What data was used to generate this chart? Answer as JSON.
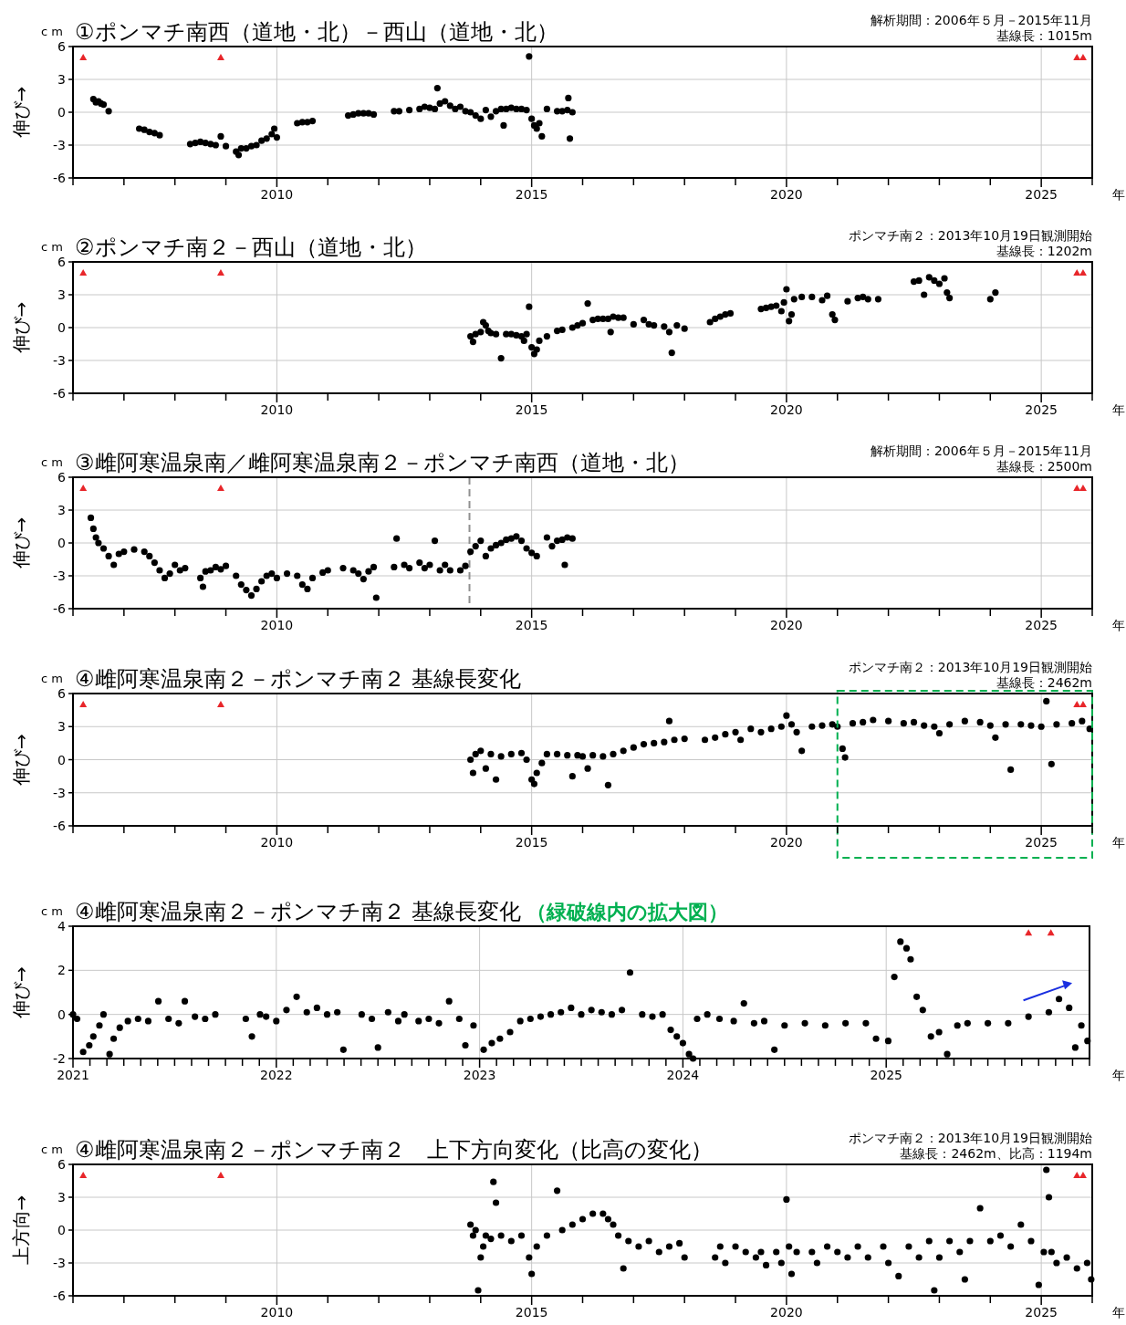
{
  "chart_data": [
    {
      "type": "scatter",
      "title": "①ポンマチ南西（道地・北）－西山（道地・北）",
      "subtitle": "解析期間：2006年５月－2015年11月",
      "annotations": [
        "cm",
        "基線長：1015m"
      ],
      "xlabel": "年",
      "ylabel": "伸び→",
      "marker": "circle",
      "grid": true,
      "xlim": [
        2006,
        2026
      ],
      "xticks": [
        {
          "value": 2006,
          "label": null
        },
        {
          "value": 2007,
          "label": null
        },
        {
          "value": 2008,
          "label": null
        },
        {
          "value": 2009,
          "label": null
        },
        2010,
        {
          "value": 2011,
          "label": null
        },
        {
          "value": 2012,
          "label": null
        },
        {
          "value": 2013,
          "label": null
        },
        {
          "value": 2014,
          "label": null
        },
        2015,
        {
          "value": 2016,
          "label": null
        },
        {
          "value": 2017,
          "label": null
        },
        {
          "value": 2018,
          "label": null
        },
        {
          "value": 2019,
          "label": null
        },
        2020,
        {
          "value": 2021,
          "label": null
        },
        {
          "value": 2022,
          "label": null
        },
        {
          "value": 2023,
          "label": null
        },
        {
          "value": 2024,
          "label": null
        },
        2025,
        {
          "value": 2026,
          "label": null
        }
      ],
      "ylim": [
        -6,
        6
      ],
      "yticks": [
        -6,
        -3,
        0,
        3,
        6
      ],
      "series": [
        {
          "color": "#000000",
          "x": [
            2006.4,
            2006.45,
            2006.5,
            2006.55,
            2006.6,
            2006.7,
            2007.3,
            2007.4,
            2007.5,
            2007.6,
            2007.7,
            2008.3,
            2008.4,
            2008.5,
            2008.6,
            2008.7,
            2008.8,
            2008.9,
            2009.0,
            2009.2,
            2009.25,
            2009.3,
            2009.4,
            2009.5,
            2009.6,
            2009.7,
            2009.8,
            2009.9,
            2009.95,
            2010.0,
            2010.4,
            2010.5,
            2010.6,
            2010.7,
            2011.4,
            2011.5,
            2011.6,
            2011.7,
            2011.8,
            2011.9,
            2012.3,
            2012.4,
            2012.6,
            2012.8,
            2012.9,
            2013.0,
            2013.1,
            2013.15,
            2013.2,
            2013.3,
            2013.4,
            2013.5,
            2013.6,
            2013.7,
            2013.8,
            2013.9,
            2014.0,
            2014.1,
            2014.2,
            2014.3,
            2014.4,
            2014.45,
            2014.5,
            2014.6,
            2014.7,
            2014.8,
            2014.9,
            2014.95,
            2015.0,
            2015.05,
            2015.1,
            2015.15,
            2015.2,
            2015.3,
            2015.5,
            2015.6,
            2015.7,
            2015.72,
            2015.75,
            2015.8
          ],
          "values": [
            1.2,
            0.9,
            1.0,
            0.8,
            0.7,
            0.1,
            -1.5,
            -1.6,
            -1.8,
            -1.9,
            -2.1,
            -2.9,
            -2.8,
            -2.7,
            -2.8,
            -2.9,
            -3.0,
            -2.2,
            -3.1,
            -3.6,
            -3.9,
            -3.3,
            -3.3,
            -3.1,
            -3.0,
            -2.6,
            -2.4,
            -2.0,
            -1.5,
            -2.3,
            -1.0,
            -0.9,
            -0.9,
            -0.8,
            -0.3,
            -0.2,
            -0.1,
            -0.1,
            -0.1,
            -0.2,
            0.1,
            0.1,
            0.2,
            0.3,
            0.5,
            0.4,
            0.3,
            2.2,
            0.8,
            1.0,
            0.6,
            0.3,
            0.5,
            0.1,
            0.0,
            -0.3,
            -0.6,
            0.2,
            -0.4,
            0.1,
            0.3,
            -1.2,
            0.3,
            0.4,
            0.3,
            0.3,
            0.2,
            5.1,
            -0.6,
            -1.2,
            -1.5,
            -1.0,
            -2.2,
            0.3,
            0.1,
            0.1,
            0.2,
            1.3,
            -2.4,
            0.0
          ]
        },
        {
          "color": "#e8262a",
          "marker": "triangle",
          "x": [
            2006.2,
            2008.9,
            2025.7,
            2025.82
          ],
          "values": [
            5,
            5,
            5,
            5
          ]
        }
      ]
    },
    {
      "type": "scatter",
      "title": "②ポンマチ南２－西山（道地・北）",
      "subtitle": "ポンマチ南２：2013年10月19日観測開始",
      "annotations": [
        "cm",
        "基線長：1202m"
      ],
      "xlabel": "年",
      "ylabel": "伸び→",
      "marker": "circle",
      "grid": true,
      "xlim": [
        2006,
        2026
      ],
      "xticks": [
        {
          "value": 2006,
          "label": null
        },
        {
          "value": 2007,
          "label": null
        },
        {
          "value": 2008,
          "label": null
        },
        {
          "value": 2009,
          "label": null
        },
        2010,
        {
          "value": 2011,
          "label": null
        },
        {
          "value": 2012,
          "label": null
        },
        {
          "value": 2013,
          "label": null
        },
        {
          "value": 2014,
          "label": null
        },
        2015,
        {
          "value": 2016,
          "label": null
        },
        {
          "value": 2017,
          "label": null
        },
        {
          "value": 2018,
          "label": null
        },
        {
          "value": 2019,
          "label": null
        },
        2020,
        {
          "value": 2021,
          "label": null
        },
        {
          "value": 2022,
          "label": null
        },
        {
          "value": 2023,
          "label": null
        },
        {
          "value": 2024,
          "label": null
        },
        2025,
        {
          "value": 2026,
          "label": null
        }
      ],
      "ylim": [
        -6,
        6
      ],
      "yticks": [
        -6,
        -3,
        0,
        3,
        6
      ],
      "series": [
        {
          "color": "#000000",
          "x": [
            2013.8,
            2013.85,
            2013.9,
            2014.0,
            2014.05,
            2014.1,
            2014.15,
            2014.2,
            2014.3,
            2014.4,
            2014.5,
            2014.6,
            2014.7,
            2014.8,
            2014.85,
            2014.9,
            2014.95,
            2015.0,
            2015.05,
            2015.1,
            2015.15,
            2015.3,
            2015.5,
            2015.6,
            2015.8,
            2015.9,
            2016.0,
            2016.1,
            2016.2,
            2016.3,
            2016.4,
            2016.5,
            2016.55,
            2016.6,
            2016.7,
            2016.8,
            2017.0,
            2017.2,
            2017.3,
            2017.4,
            2017.6,
            2017.7,
            2017.75,
            2017.85,
            2018.0,
            2018.5,
            2018.6,
            2018.7,
            2018.8,
            2018.9,
            2019.5,
            2019.6,
            2019.7,
            2019.8,
            2019.9,
            2019.95,
            2020.0,
            2020.05,
            2020.1,
            2020.15,
            2020.3,
            2020.5,
            2020.7,
            2020.8,
            2020.9,
            2020.95,
            2021.2,
            2021.4,
            2021.5,
            2021.6,
            2021.8,
            2022.5,
            2022.6,
            2022.7,
            2022.8,
            2022.9,
            2023.0,
            2023.1,
            2023.15,
            2023.2,
            2024.0,
            2024.1
          ],
          "values": [
            -0.8,
            -1.3,
            -0.6,
            -0.4,
            0.5,
            0.2,
            -0.3,
            -0.5,
            -0.6,
            -2.8,
            -0.6,
            -0.6,
            -0.7,
            -0.8,
            -1.2,
            -0.6,
            1.9,
            -1.8,
            -2.4,
            -2.0,
            -1.2,
            -0.8,
            -0.3,
            -0.2,
            0.0,
            0.2,
            0.4,
            2.2,
            0.7,
            0.8,
            0.8,
            0.8,
            -0.4,
            1.0,
            0.9,
            0.9,
            0.3,
            0.7,
            0.3,
            0.2,
            0.1,
            -0.4,
            -2.3,
            0.2,
            -0.1,
            0.5,
            0.8,
            1.0,
            1.2,
            1.3,
            1.7,
            1.8,
            1.9,
            2.0,
            1.5,
            2.3,
            3.5,
            0.6,
            1.2,
            2.6,
            2.8,
            2.8,
            2.5,
            2.9,
            1.2,
            0.7,
            2.4,
            2.7,
            2.8,
            2.6,
            2.6,
            4.2,
            4.3,
            3.0,
            4.6,
            4.3,
            4.0,
            4.5,
            3.2,
            2.7,
            2.6,
            3.2
          ]
        },
        {
          "color": "#e8262a",
          "marker": "triangle",
          "x": [
            2006.2,
            2008.9,
            2025.7,
            2025.82
          ],
          "values": [
            5,
            5,
            5,
            5
          ]
        }
      ]
    },
    {
      "type": "scatter",
      "title": "③雌阿寒温泉南／雌阿寒温泉南２－ポンマチ南西（道地・北）",
      "subtitle": "解析期間：2006年５月－2015年11月",
      "annotations": [
        "cm",
        "基線長：2500m"
      ],
      "xlabel": "年",
      "ylabel": "伸び→",
      "marker": "circle",
      "grid": true,
      "xlim": [
        2006,
        2026
      ],
      "xticks": [
        {
          "value": 2006,
          "label": null
        },
        {
          "value": 2007,
          "label": null
        },
        {
          "value": 2008,
          "label": null
        },
        {
          "value": 2009,
          "label": null
        },
        2010,
        {
          "value": 2011,
          "label": null
        },
        {
          "value": 2012,
          "label": null
        },
        {
          "value": 2013,
          "label": null
        },
        {
          "value": 2014,
          "label": null
        },
        2015,
        {
          "value": 2016,
          "label": null
        },
        {
          "value": 2017,
          "label": null
        },
        {
          "value": 2018,
          "label": null
        },
        {
          "value": 2019,
          "label": null
        },
        2020,
        {
          "value": 2021,
          "label": null
        },
        {
          "value": 2022,
          "label": null
        },
        {
          "value": 2023,
          "label": null
        },
        {
          "value": 2024,
          "label": null
        },
        2025,
        {
          "value": 2026,
          "label": null
        }
      ],
      "ylim": [
        -6,
        6
      ],
      "yticks": [
        -6,
        -3,
        0,
        3,
        6
      ],
      "ref_lines": [
        {
          "axis": "x",
          "value": 2013.78,
          "color": "#909090",
          "line_style": "dashed"
        }
      ],
      "series": [
        {
          "color": "#000000",
          "x": [
            2006.35,
            2006.4,
            2006.45,
            2006.5,
            2006.6,
            2006.7,
            2006.8,
            2006.9,
            2007.0,
            2007.2,
            2007.4,
            2007.5,
            2007.6,
            2007.7,
            2007.8,
            2007.9,
            2008.0,
            2008.1,
            2008.2,
            2008.5,
            2008.55,
            2008.6,
            2008.7,
            2008.8,
            2008.9,
            2009.0,
            2009.2,
            2009.3,
            2009.4,
            2009.5,
            2009.6,
            2009.7,
            2009.8,
            2009.9,
            2010.0,
            2010.2,
            2010.4,
            2010.5,
            2010.6,
            2010.7,
            2010.9,
            2011.0,
            2011.3,
            2011.5,
            2011.6,
            2011.7,
            2011.8,
            2011.9,
            2011.95,
            2012.3,
            2012.35,
            2012.5,
            2012.6,
            2012.8,
            2012.9,
            2013.0,
            2013.1,
            2013.2,
            2013.3,
            2013.4,
            2013.6,
            2013.7,
            2013.8,
            2013.9,
            2014.0,
            2014.1,
            2014.2,
            2014.3,
            2014.4,
            2014.5,
            2014.6,
            2014.7,
            2014.8,
            2014.9,
            2015.0,
            2015.1,
            2015.3,
            2015.4,
            2015.5,
            2015.6,
            2015.65,
            2015.7,
            2015.8
          ],
          "values": [
            2.3,
            1.3,
            0.5,
            0.0,
            -0.5,
            -1.2,
            -2.0,
            -1.0,
            -0.8,
            -0.6,
            -0.8,
            -1.2,
            -1.8,
            -2.5,
            -3.2,
            -2.8,
            -2.0,
            -2.5,
            -2.3,
            -3.2,
            -4.0,
            -2.6,
            -2.5,
            -2.2,
            -2.4,
            -2.1,
            -3.0,
            -3.8,
            -4.3,
            -4.8,
            -4.2,
            -3.5,
            -3.0,
            -2.8,
            -3.2,
            -2.8,
            -3.0,
            -3.8,
            -4.2,
            -3.2,
            -2.7,
            -2.5,
            -2.3,
            -2.5,
            -2.8,
            -3.3,
            -2.6,
            -2.2,
            -5.0,
            -2.2,
            0.4,
            -2.0,
            -2.3,
            -1.8,
            -2.3,
            -2.0,
            0.2,
            -2.5,
            -2.0,
            -2.5,
            -2.5,
            -2.1,
            -0.8,
            -0.3,
            0.2,
            -1.2,
            -0.5,
            -0.2,
            0.0,
            0.3,
            0.4,
            0.6,
            0.2,
            -0.5,
            -0.9,
            -1.2,
            0.5,
            -0.3,
            0.2,
            0.3,
            -2.0,
            0.5,
            0.4
          ]
        },
        {
          "color": "#e8262a",
          "marker": "triangle",
          "x": [
            2006.2,
            2008.9,
            2025.7,
            2025.82
          ],
          "values": [
            5,
            5,
            5,
            5
          ]
        }
      ]
    },
    {
      "type": "scatter",
      "title": "④雌阿寒温泉南２－ポンマチ南２  基線長変化",
      "subtitle": "ポンマチ南２：2013年10月19日観測開始",
      "annotations": [
        "cm",
        "基線長：2462m"
      ],
      "xlabel": "年",
      "ylabel": "伸び→",
      "marker": "circle",
      "grid": true,
      "xlim": [
        2006,
        2026
      ],
      "xticks": [
        {
          "value": 2006,
          "label": null
        },
        {
          "value": 2007,
          "label": null
        },
        {
          "value": 2008,
          "label": null
        },
        {
          "value": 2009,
          "label": null
        },
        2010,
        {
          "value": 2011,
          "label": null
        },
        {
          "value": 2012,
          "label": null
        },
        {
          "value": 2013,
          "label": null
        },
        {
          "value": 2014,
          "label": null
        },
        2015,
        {
          "value": 2016,
          "label": null
        },
        {
          "value": 2017,
          "label": null
        },
        {
          "value": 2018,
          "label": null
        },
        {
          "value": 2019,
          "label": null
        },
        2020,
        {
          "value": 2021,
          "label": null
        },
        {
          "value": 2022,
          "label": null
        },
        {
          "value": 2023,
          "label": null
        },
        {
          "value": 2024,
          "label": null
        },
        2025,
        {
          "value": 2026,
          "label": null
        }
      ],
      "ylim": [
        -6,
        6
      ],
      "yticks": [
        -6,
        -3,
        0,
        3,
        6
      ],
      "series": [
        {
          "color": "#000000",
          "x": [
            2013.8,
            2013.85,
            2013.9,
            2014.0,
            2014.1,
            2014.2,
            2014.3,
            2014.4,
            2014.6,
            2014.8,
            2014.9,
            2015.0,
            2015.05,
            2015.1,
            2015.2,
            2015.3,
            2015.5,
            2015.7,
            2015.8,
            2015.9,
            2016.0,
            2016.1,
            2016.2,
            2016.4,
            2016.5,
            2016.6,
            2016.8,
            2017.0,
            2017.2,
            2017.4,
            2017.6,
            2017.7,
            2017.8,
            2018.0,
            2018.4,
            2018.6,
            2018.8,
            2019.0,
            2019.1,
            2019.3,
            2019.5,
            2019.7,
            2019.9,
            2020.0,
            2020.1,
            2020.2,
            2020.3,
            2020.5,
            2020.7,
            2020.9,
            2021.0,
            2021.1,
            2021.15,
            2021.3,
            2021.5,
            2021.7,
            2022.0,
            2022.3,
            2022.5,
            2022.7,
            2022.9,
            2023.0,
            2023.2,
            2023.5,
            2023.8,
            2024.0,
            2024.1,
            2024.3,
            2024.4,
            2024.6,
            2024.8,
            2025.0,
            2025.1,
            2025.2,
            2025.3,
            2025.6,
            2025.8,
            2025.95
          ],
          "values": [
            0.0,
            -1.2,
            0.5,
            0.8,
            -0.8,
            0.5,
            -1.8,
            0.3,
            0.5,
            0.6,
            0.0,
            -1.8,
            -2.2,
            -1.2,
            -0.3,
            0.5,
            0.5,
            0.4,
            -1.5,
            0.4,
            0.3,
            -0.8,
            0.4,
            0.3,
            -2.3,
            0.5,
            0.8,
            1.1,
            1.4,
            1.5,
            1.6,
            3.5,
            1.8,
            1.9,
            1.8,
            2.0,
            2.3,
            2.5,
            1.8,
            2.8,
            2.5,
            2.8,
            3.0,
            4.0,
            3.2,
            2.5,
            0.8,
            3.0,
            3.1,
            3.2,
            3.0,
            1.0,
            0.2,
            3.3,
            3.4,
            3.6,
            3.5,
            3.3,
            3.4,
            3.1,
            3.0,
            2.4,
            3.2,
            3.5,
            3.4,
            3.1,
            2.0,
            3.2,
            -0.9,
            3.2,
            3.1,
            3.0,
            5.3,
            -0.4,
            3.2,
            3.3,
            3.5,
            2.8
          ]
        },
        {
          "color": "#e8262a",
          "marker": "triangle",
          "x": [
            2006.2,
            2008.9,
            2025.7,
            2025.82
          ],
          "values": [
            5,
            5,
            5,
            5
          ]
        }
      ]
    },
    {
      "type": "scatter",
      "title": "④雌阿寒温泉南２－ポンマチ南２ 基線長変化",
      "subtitle": "（緑破線内の拡大図）",
      "annotations": [
        "cm"
      ],
      "xlabel": "年",
      "ylabel": "伸び→",
      "marker": "circle",
      "grid": true,
      "xlim": [
        2021,
        2026
      ],
      "xticks": [
        2021,
        {
          "value": 2021.0833,
          "label": null
        },
        {
          "value": 2021.1667,
          "label": null
        },
        {
          "value": 2021.25,
          "label": null
        },
        {
          "value": 2021.3333,
          "label": null
        },
        {
          "value": 2021.4167,
          "label": null
        },
        {
          "value": 2021.5,
          "label": null
        },
        {
          "value": 2021.5833,
          "label": null
        },
        {
          "value": 2021.6667,
          "label": null
        },
        {
          "value": 2021.75,
          "label": null
        },
        {
          "value": 2021.8333,
          "label": null
        },
        {
          "value": 2021.9167,
          "label": null
        },
        2022,
        {
          "value": 2022.0833,
          "label": null
        },
        {
          "value": 2022.1667,
          "label": null
        },
        {
          "value": 2022.25,
          "label": null
        },
        {
          "value": 2022.3333,
          "label": null
        },
        {
          "value": 2022.4167,
          "label": null
        },
        {
          "value": 2022.5,
          "label": null
        },
        {
          "value": 2022.5833,
          "label": null
        },
        {
          "value": 2022.6667,
          "label": null
        },
        {
          "value": 2022.75,
          "label": null
        },
        {
          "value": 2022.8333,
          "label": null
        },
        {
          "value": 2022.9167,
          "label": null
        },
        2023,
        {
          "value": 2023.0833,
          "label": null
        },
        {
          "value": 2023.1667,
          "label": null
        },
        {
          "value": 2023.25,
          "label": null
        },
        {
          "value": 2023.3333,
          "label": null
        },
        {
          "value": 2023.4167,
          "label": null
        },
        {
          "value": 2023.5,
          "label": null
        },
        {
          "value": 2023.5833,
          "label": null
        },
        {
          "value": 2023.6667,
          "label": null
        },
        {
          "value": 2023.75,
          "label": null
        },
        {
          "value": 2023.8333,
          "label": null
        },
        {
          "value": 2023.9167,
          "label": null
        },
        2024,
        {
          "value": 2024.0833,
          "label": null
        },
        {
          "value": 2024.1667,
          "label": null
        },
        {
          "value": 2024.25,
          "label": null
        },
        {
          "value": 2024.3333,
          "label": null
        },
        {
          "value": 2024.4167,
          "label": null
        },
        {
          "value": 2024.5,
          "label": null
        },
        {
          "value": 2024.5833,
          "label": null
        },
        {
          "value": 2024.6667,
          "label": null
        },
        {
          "value": 2024.75,
          "label": null
        },
        {
          "value": 2024.8333,
          "label": null
        },
        {
          "value": 2024.9167,
          "label": null
        },
        2025,
        {
          "value": 2025.0833,
          "label": null
        },
        {
          "value": 2025.1667,
          "label": null
        },
        {
          "value": 2025.25,
          "label": null
        },
        {
          "value": 2025.3333,
          "label": null
        },
        {
          "value": 2025.4167,
          "label": null
        },
        {
          "value": 2025.5,
          "label": null
        },
        {
          "value": 2025.5833,
          "label": null
        },
        {
          "value": 2025.6667,
          "label": null
        },
        {
          "value": 2025.75,
          "label": null
        },
        {
          "value": 2025.8333,
          "label": null
        },
        {
          "value": 2025.9167,
          "label": null
        },
        {
          "value": 2026,
          "label": null
        }
      ],
      "ylim": [
        -2,
        4
      ],
      "yticks": [
        -2,
        0,
        2,
        4
      ],
      "series": [
        {
          "color": "#000000",
          "x": [
            2021.0,
            2021.02,
            2021.05,
            2021.08,
            2021.1,
            2021.13,
            2021.15,
            2021.18,
            2021.2,
            2021.23,
            2021.27,
            2021.32,
            2021.37,
            2021.42,
            2021.47,
            2021.52,
            2021.55,
            2021.6,
            2021.65,
            2021.7,
            2021.85,
            2021.88,
            2021.92,
            2021.95,
            2022.0,
            2022.05,
            2022.1,
            2022.15,
            2022.2,
            2022.25,
            2022.3,
            2022.33,
            2022.42,
            2022.47,
            2022.5,
            2022.55,
            2022.6,
            2022.63,
            2022.7,
            2022.75,
            2022.8,
            2022.85,
            2022.9,
            2022.93,
            2022.97,
            2023.02,
            2023.06,
            2023.1,
            2023.15,
            2023.2,
            2023.25,
            2023.3,
            2023.35,
            2023.4,
            2023.45,
            2023.5,
            2023.55,
            2023.6,
            2023.65,
            2023.7,
            2023.74,
            2023.8,
            2023.85,
            2023.9,
            2023.94,
            2023.97,
            2024.0,
            2024.03,
            2024.05,
            2024.07,
            2024.12,
            2024.18,
            2024.25,
            2024.3,
            2024.35,
            2024.4,
            2024.45,
            2024.5,
            2024.6,
            2024.7,
            2024.8,
            2024.9,
            2024.95,
            2025.01,
            2025.04,
            2025.07,
            2025.1,
            2025.12,
            2025.15,
            2025.18,
            2025.22,
            2025.26,
            2025.3,
            2025.35,
            2025.4,
            2025.5,
            2025.6,
            2025.7,
            2025.8,
            2025.85,
            2025.9,
            2025.93,
            2025.96,
            2025.99
          ],
          "values": [
            0.0,
            -0.2,
            -1.7,
            -1.4,
            -1.0,
            -0.5,
            0.0,
            -1.8,
            -1.1,
            -0.6,
            -0.3,
            -0.2,
            -0.3,
            0.6,
            -0.2,
            -0.4,
            0.6,
            -0.1,
            -0.2,
            0.0,
            -0.2,
            -1.0,
            0.0,
            -0.1,
            -0.3,
            0.2,
            0.8,
            0.1,
            0.3,
            0.0,
            0.1,
            -1.6,
            0.0,
            -0.2,
            -1.5,
            0.1,
            -0.3,
            0.0,
            -0.3,
            -0.2,
            -0.4,
            0.6,
            -0.2,
            -1.4,
            -0.5,
            -1.6,
            -1.3,
            -1.1,
            -0.8,
            -0.3,
            -0.2,
            -0.1,
            0.0,
            0.1,
            0.3,
            0.0,
            0.2,
            0.1,
            0.0,
            0.2,
            1.9,
            0.0,
            -0.1,
            0.0,
            -0.7,
            -1.0,
            -1.3,
            -1.8,
            -2.0,
            -0.2,
            0.0,
            -0.2,
            -0.3,
            0.5,
            -0.4,
            -0.3,
            -1.6,
            -0.5,
            -0.4,
            -0.5,
            -0.4,
            -0.4,
            -1.1,
            -1.2,
            1.7,
            3.3,
            3.0,
            2.5,
            0.8,
            0.2,
            -1.0,
            -0.8,
            -1.8,
            -0.5,
            -0.4,
            -0.4,
            -0.4,
            -0.1,
            0.1,
            0.7,
            0.3,
            -1.5,
            -0.5,
            -1.2
          ]
        },
        {
          "color": "#e8262a",
          "marker": "triangle",
          "x": [
            2025.7,
            2025.81
          ],
          "values": [
            3.7,
            3.7
          ]
        }
      ]
    },
    {
      "type": "scatter",
      "title": "④雌阿寒温泉南２－ポンマチ南２　上下方向変化（比高の変化）",
      "subtitle": "ポンマチ南２：2013年10月19日観測開始",
      "annotations": [
        "cm",
        "基線長：2462m、比高：1194m"
      ],
      "xlabel": "年",
      "ylabel": "上方向→",
      "marker": "circle",
      "grid": true,
      "xlim": [
        2006,
        2026
      ],
      "xticks": [
        {
          "value": 2006,
          "label": null
        },
        {
          "value": 2007,
          "label": null
        },
        {
          "value": 2008,
          "label": null
        },
        {
          "value": 2009,
          "label": null
        },
        2010,
        {
          "value": 2011,
          "label": null
        },
        {
          "value": 2012,
          "label": null
        },
        {
          "value": 2013,
          "label": null
        },
        {
          "value": 2014,
          "label": null
        },
        2015,
        {
          "value": 2016,
          "label": null
        },
        {
          "value": 2017,
          "label": null
        },
        {
          "value": 2018,
          "label": null
        },
        {
          "value": 2019,
          "label": null
        },
        2020,
        {
          "value": 2021,
          "label": null
        },
        {
          "value": 2022,
          "label": null
        },
        {
          "value": 2023,
          "label": null
        },
        {
          "value": 2024,
          "label": null
        },
        2025,
        {
          "value": 2026,
          "label": null
        }
      ],
      "ylim": [
        -6,
        6
      ],
      "yticks": [
        -6,
        -3,
        0,
        3,
        6
      ],
      "series": [
        {
          "color": "#000000",
          "x": [
            2013.8,
            2013.85,
            2013.9,
            2013.95,
            2014.0,
            2014.05,
            2014.1,
            2014.2,
            2014.25,
            2014.3,
            2014.4,
            2014.6,
            2014.8,
            2014.95,
            2015.0,
            2015.1,
            2015.3,
            2015.5,
            2015.6,
            2015.8,
            2016.0,
            2016.2,
            2016.4,
            2016.5,
            2016.6,
            2016.7,
            2016.8,
            2016.9,
            2017.1,
            2017.3,
            2017.5,
            2017.7,
            2017.9,
            2018.0,
            2018.6,
            2018.7,
            2018.8,
            2019.0,
            2019.2,
            2019.4,
            2019.5,
            2019.6,
            2019.8,
            2019.9,
            2020.0,
            2020.05,
            2020.1,
            2020.2,
            2020.5,
            2020.6,
            2020.8,
            2021.0,
            2021.2,
            2021.4,
            2021.6,
            2021.9,
            2022.0,
            2022.2,
            2022.4,
            2022.6,
            2022.8,
            2022.9,
            2023.0,
            2023.2,
            2023.4,
            2023.5,
            2023.6,
            2023.8,
            2024.0,
            2024.2,
            2024.4,
            2024.6,
            2024.8,
            2024.95,
            2025.05,
            2025.1,
            2025.15,
            2025.2,
            2025.3,
            2025.5,
            2025.7,
            2025.9,
            2025.98
          ],
          "values": [
            0.5,
            -0.5,
            0.0,
            -5.5,
            -2.5,
            -1.5,
            -0.5,
            -0.8,
            4.4,
            2.5,
            -0.5,
            -1.0,
            -0.5,
            -2.5,
            -4.0,
            -1.5,
            -0.5,
            3.6,
            0.0,
            0.5,
            1.0,
            1.5,
            1.5,
            1.0,
            0.5,
            -0.5,
            -3.5,
            -1.0,
            -1.5,
            -1.0,
            -2.0,
            -1.5,
            -1.2,
            -2.5,
            -2.5,
            -1.5,
            -3.0,
            -1.5,
            -2.0,
            -2.5,
            -2.0,
            -3.2,
            -2.0,
            -3.0,
            2.8,
            -1.5,
            -4.0,
            -2.0,
            -2.0,
            -3.0,
            -1.5,
            -2.0,
            -2.5,
            -1.5,
            -2.5,
            -1.5,
            -3.0,
            -4.2,
            -1.5,
            -2.5,
            -1.0,
            -5.5,
            -2.5,
            -1.0,
            -2.0,
            -4.5,
            -1.0,
            2.0,
            -1.0,
            -0.5,
            -1.5,
            0.5,
            -1.0,
            -5.0,
            -2.0,
            5.5,
            3.0,
            -2.0,
            -3.0,
            -2.5,
            -3.5,
            -3.0,
            -4.5
          ]
        },
        {
          "color": "#e8262a",
          "marker": "triangle",
          "x": [
            2006.2,
            2008.9,
            2025.7,
            2025.82
          ],
          "values": [
            5,
            5,
            5,
            5
          ]
        }
      ]
    }
  ]
}
